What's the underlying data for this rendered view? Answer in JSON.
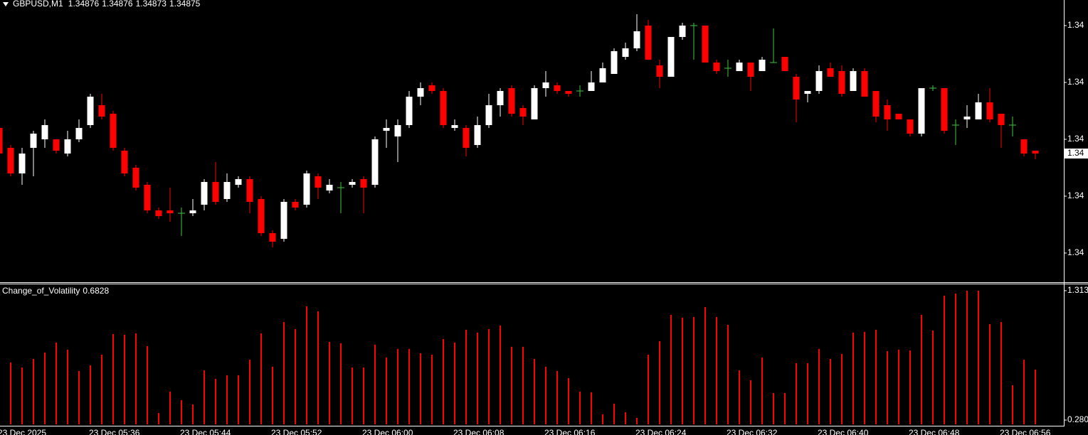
{
  "chart_data": [
    {
      "type": "candlestick",
      "symbol": "GBPUSD,M1",
      "categories": [
        "23 Dec 2025",
        null,
        null,
        null,
        null,
        null,
        null,
        null,
        "23 Dec 05:36",
        null,
        null,
        null,
        null,
        null,
        null,
        null,
        "23 Dec 05:44",
        null,
        null,
        null,
        null,
        null,
        null,
        null,
        "23 Dec 05:52",
        null,
        null,
        null,
        null,
        null,
        null,
        null,
        "23 Dec 06:00",
        null,
        null,
        null,
        null,
        null,
        null,
        null,
        "23 Dec 06:08",
        null,
        null,
        null,
        null,
        null,
        null,
        null,
        "23 Dec 06:16",
        null,
        null,
        null,
        null,
        null,
        null,
        null,
        "23 Dec 06:24",
        null,
        null,
        null,
        null,
        null,
        null,
        null,
        "23 Dec 06:32",
        null,
        null,
        null,
        null,
        null,
        null,
        null,
        "23 Dec 06:40",
        null,
        null,
        null,
        null,
        null,
        null,
        null,
        "23 Dec 06:48",
        null,
        null,
        null,
        null,
        null,
        null,
        null,
        "23 Dec 06:56",
        null,
        null,
        null
      ],
      "open": [
        1.34884,
        1.34877,
        1.34868,
        1.34877,
        1.3488,
        1.3488,
        1.34875,
        1.3488,
        1.34885,
        1.34892,
        1.34889,
        1.34876,
        1.3487,
        1.34864,
        1.34855,
        1.34855,
        1.34854,
        1.34854,
        1.34857,
        1.34865,
        1.34859,
        1.34864,
        1.34866,
        1.34859,
        1.34847,
        1.34845,
        1.34858,
        1.34857,
        1.34867,
        1.34862,
        1.34863,
        1.34864,
        1.34866,
        1.34864,
        1.34883,
        1.34881,
        1.34885,
        1.34895,
        1.34899,
        1.34897,
        1.34884,
        1.34884,
        1.34878,
        1.34885,
        1.34892,
        1.34898,
        1.34891,
        1.34887,
        1.34898,
        1.34899,
        1.34897,
        1.34897,
        1.34897,
        1.349,
        1.34903,
        1.34909,
        1.34912,
        1.3492,
        1.34906,
        1.34902,
        1.34916,
        1.3492,
        1.3492,
        1.34907,
        1.34905,
        1.34904,
        1.34907,
        1.34904,
        1.34907,
        1.34909,
        1.34902,
        1.34896,
        1.34897,
        1.34905,
        1.34904,
        1.34897,
        1.34904,
        1.34897,
        1.34892,
        1.34889,
        1.34887,
        1.34882,
        1.34898,
        1.34898,
        1.34885,
        1.34887,
        1.34887,
        1.34893,
        1.34889,
        1.34885,
        1.3488,
        1.34876
      ],
      "high": [
        1.34885,
        1.34878,
        1.34877,
        1.34883,
        1.34887,
        1.3488,
        1.34883,
        1.34887,
        1.34896,
        1.34896,
        1.3489,
        1.34877,
        1.34871,
        1.34865,
        1.34856,
        1.34863,
        1.34856,
        1.34859,
        1.34866,
        1.34872,
        1.34868,
        1.34867,
        1.34867,
        1.3486,
        1.34848,
        1.34859,
        1.34859,
        1.34869,
        1.34868,
        1.34866,
        1.34865,
        1.34866,
        1.34867,
        1.34881,
        1.34887,
        1.34887,
        1.34897,
        1.349,
        1.349,
        1.34898,
        1.34887,
        1.34885,
        1.34888,
        1.34896,
        1.34898,
        1.34899,
        1.34892,
        1.34899,
        1.34904,
        1.349,
        1.34897,
        1.34899,
        1.34904,
        1.34907,
        1.34912,
        1.34914,
        1.34924,
        1.34922,
        1.34908,
        1.34916,
        1.34921,
        1.34921,
        1.3492,
        1.34908,
        1.34908,
        1.34908,
        1.34907,
        1.34909,
        1.34919,
        1.34909,
        1.34903,
        1.34897,
        1.34906,
        1.34907,
        1.34906,
        1.34905,
        1.34905,
        1.34897,
        1.34894,
        1.34889,
        1.34887,
        1.34898,
        1.34899,
        1.34898,
        1.34887,
        1.34892,
        1.34896,
        1.34898,
        1.34889,
        1.34888,
        1.3488,
        1.34876
      ],
      "low": [
        1.34871,
        1.34867,
        1.34864,
        1.34867,
        1.34877,
        1.34875,
        1.34874,
        1.34879,
        1.34884,
        1.34887,
        1.34876,
        1.34867,
        1.34862,
        1.34854,
        1.34852,
        1.34851,
        1.34846,
        1.34853,
        1.34855,
        1.34857,
        1.34858,
        1.34863,
        1.34854,
        1.34846,
        1.34842,
        1.34844,
        1.34855,
        1.34856,
        1.34859,
        1.34861,
        1.34854,
        1.34863,
        1.34854,
        1.34863,
        1.34877,
        1.34872,
        1.34884,
        1.34892,
        1.34896,
        1.34884,
        1.34883,
        1.34874,
        1.34877,
        1.34884,
        1.34888,
        1.34888,
        1.34885,
        1.34887,
        1.34895,
        1.34896,
        1.34895,
        1.34895,
        1.34897,
        1.349,
        1.34903,
        1.34908,
        1.34911,
        1.34908,
        1.34898,
        1.34902,
        1.34915,
        1.34908,
        1.34907,
        1.34903,
        1.34902,
        1.34904,
        1.34897,
        1.34904,
        1.34907,
        1.34904,
        1.34886,
        1.34893,
        1.34896,
        1.34902,
        1.34895,
        1.34897,
        1.34895,
        1.34886,
        1.34883,
        1.34887,
        1.34881,
        1.34881,
        1.34897,
        1.34882,
        1.34878,
        1.34884,
        1.34887,
        1.34886,
        1.34877,
        1.34881,
        1.34874,
        1.34873
      ],
      "close": [
        1.34875,
        1.34868,
        1.34875,
        1.34882,
        1.34885,
        1.34876,
        1.3488,
        1.34884,
        1.34895,
        1.34888,
        1.34877,
        1.34868,
        1.34863,
        1.34855,
        1.34853,
        1.34854,
        1.34854,
        1.34855,
        1.34865,
        1.34858,
        1.34865,
        1.34866,
        1.34858,
        1.34847,
        1.34844,
        1.34858,
        1.34856,
        1.34868,
        1.34863,
        1.34864,
        1.34863,
        1.34865,
        1.34863,
        1.3488,
        1.34884,
        1.34885,
        1.34895,
        1.34898,
        1.34897,
        1.34885,
        1.34885,
        1.34877,
        1.34885,
        1.34892,
        1.34897,
        1.34889,
        1.34888,
        1.34898,
        1.349,
        1.34897,
        1.34896,
        1.34897,
        1.349,
        1.34905,
        1.34911,
        1.34912,
        1.34918,
        1.34908,
        1.34902,
        1.34916,
        1.3492,
        1.3492,
        1.34907,
        1.34904,
        1.34905,
        1.34907,
        1.34902,
        1.34908,
        1.34907,
        1.34904,
        1.34894,
        1.34897,
        1.34904,
        1.34902,
        1.34896,
        1.34904,
        1.34895,
        1.34888,
        1.34887,
        1.34887,
        1.34882,
        1.34898,
        1.34898,
        1.34883,
        1.34885,
        1.34888,
        1.34893,
        1.34887,
        1.34885,
        1.34885,
        1.34875,
        1.34875
      ],
      "up_color": "#ffffff",
      "down_color": "#ff0000",
      "doji_color": "#3cc83c",
      "ylim": [
        1.3483,
        1.34929
      ],
      "yticks": [
        {
          "value": 1.3492,
          "label": "1.34"
        },
        {
          "value": 1.349,
          "label": "1.34"
        },
        {
          "value": 1.3488,
          "label": "1.34"
        },
        {
          "value": 1.3486,
          "label": "1.34"
        },
        {
          "value": 1.3484,
          "label": "1.34"
        }
      ],
      "last_price_label": "1.34",
      "grid": false
    },
    {
      "type": "bar",
      "title": "Change_of_Volatility",
      "color": "#ff0000",
      "values": [
        0.72,
        0.74,
        0.7,
        0.768,
        0.819,
        0.899,
        0.842,
        0.672,
        0.717,
        0.802,
        0.967,
        0.961,
        0.972,
        0.87,
        0.337,
        0.507,
        0.439,
        0.405,
        0.677,
        0.609,
        0.638,
        0.638,
        0.762,
        0.972,
        0.706,
        1.063,
        1.006,
        1.188,
        1.148,
        0.904,
        0.893,
        0.7,
        0.7,
        0.882,
        0.779,
        0.848,
        0.848,
        0.813,
        0.802,
        0.927,
        0.899,
        1.001,
        0.978,
        1.006,
        1.035,
        0.865,
        0.865,
        0.768,
        0.706,
        0.672,
        0.615,
        0.507,
        0.502,
        0.326,
        0.411,
        0.343,
        0.297,
        0.802,
        0.91,
        1.12,
        1.097,
        1.103,
        1.182,
        1.103,
        1.04,
        0.677,
        0.598,
        0.779,
        0.496,
        0.496,
        0.734,
        0.734,
        0.848,
        0.768,
        0.808,
        0.978,
        0.984,
        1.001,
        0.83,
        0.842,
        0.836,
        1.12,
        0.995,
        1.273,
        1.29,
        1.313,
        1.313,
        1.046,
        1.063,
        0.558,
        0.762,
        0.6828
      ],
      "ylim": [
        0.246,
        1.358
      ],
      "yticks": [
        1.313,
        {
          "value": 0.28,
          "label": "0.280"
        }
      ],
      "grid": false
    }
  ]
}
